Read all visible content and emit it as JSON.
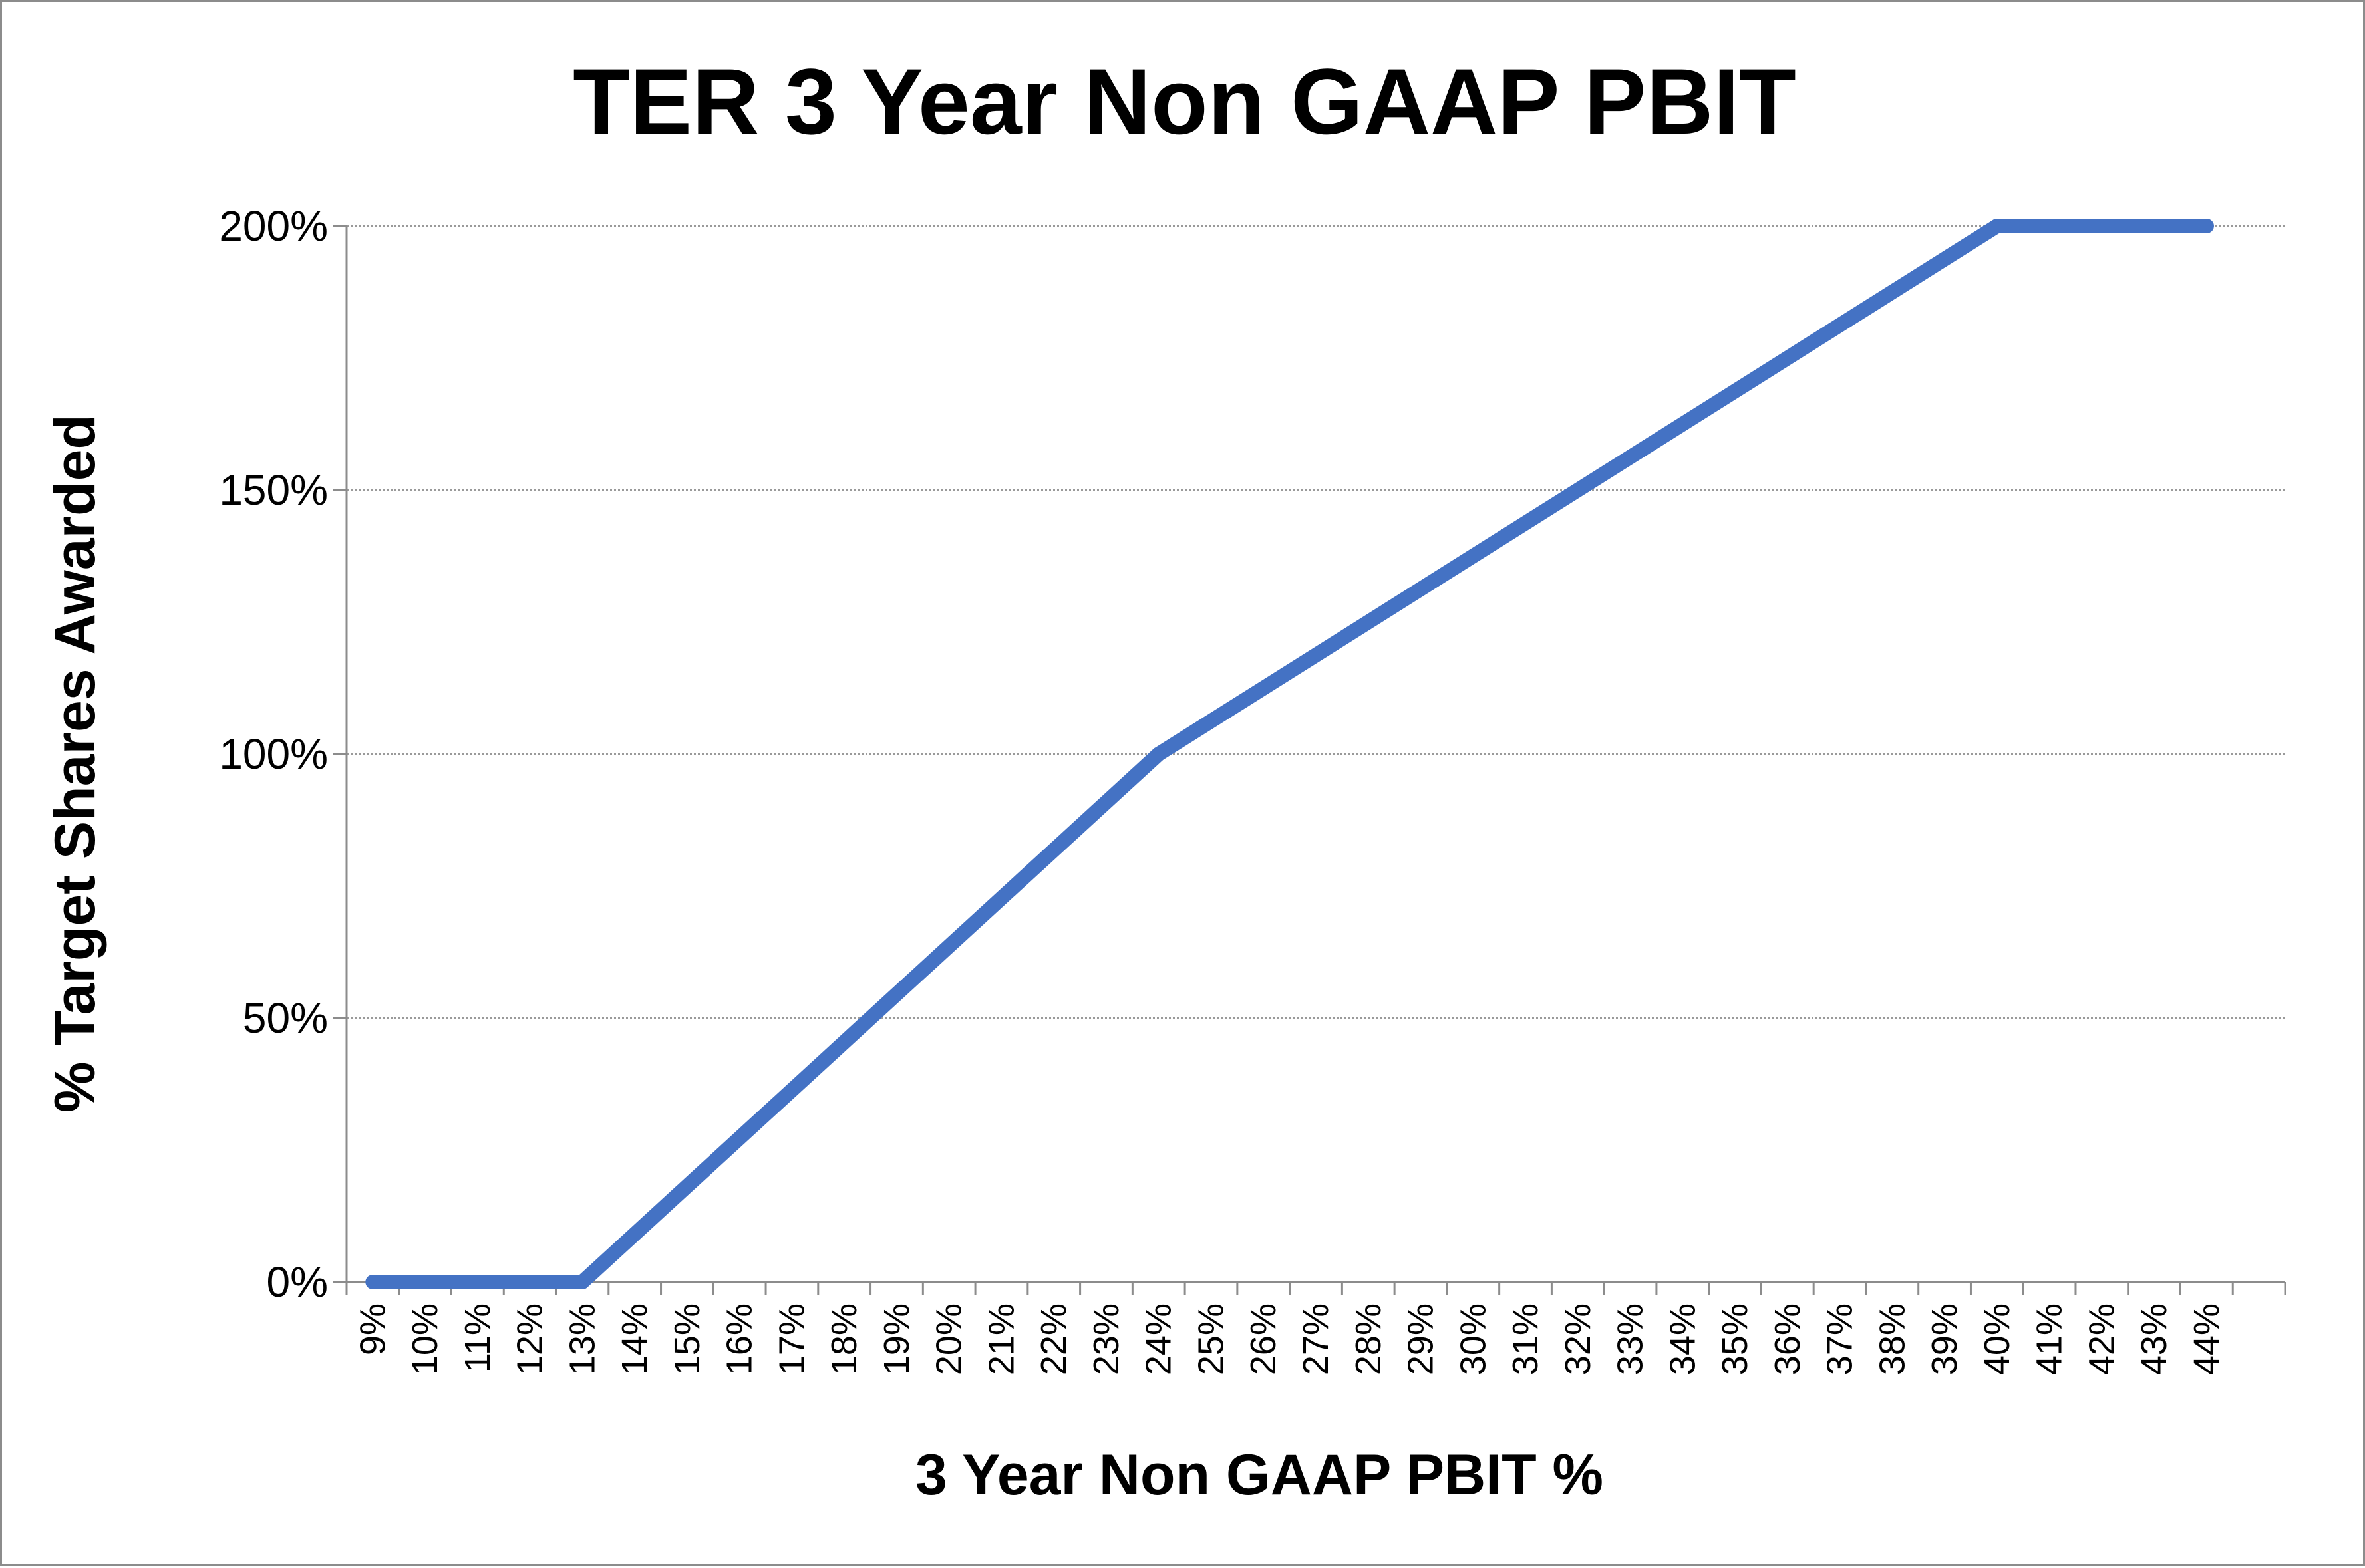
{
  "chart_data": {
    "type": "line",
    "title": "TER 3 Year Non GAAP PBIT",
    "xlabel": "3 Year Non GAAP PBIT %",
    "ylabel": "% Target Shares Awarded",
    "categories": [
      "9%",
      "10%",
      "11%",
      "12%",
      "13%",
      "14%",
      "15%",
      "16%",
      "17%",
      "18%",
      "19%",
      "20%",
      "21%",
      "22%",
      "23%",
      "24%",
      "25%",
      "26%",
      "27%",
      "28%",
      "29%",
      "30%",
      "31%",
      "32%",
      "33%",
      "34%",
      "35%",
      "36%",
      "37%",
      "38%",
      "39%",
      "40%",
      "41%",
      "42%",
      "43%",
      "44%"
    ],
    "series": [
      {
        "name": "% Target Shares Awarded",
        "color": "#4472c4",
        "x": [
          9,
          13,
          24,
          40,
          44
        ],
        "values": [
          0,
          0,
          100,
          200,
          200
        ]
      }
    ],
    "ylim": [
      0,
      200
    ],
    "yticks": [
      0,
      50,
      100,
      150,
      200
    ],
    "ytick_labels": [
      "0%",
      "50%",
      "100%",
      "150%",
      "200%"
    ],
    "grid": true,
    "legend": "none"
  }
}
